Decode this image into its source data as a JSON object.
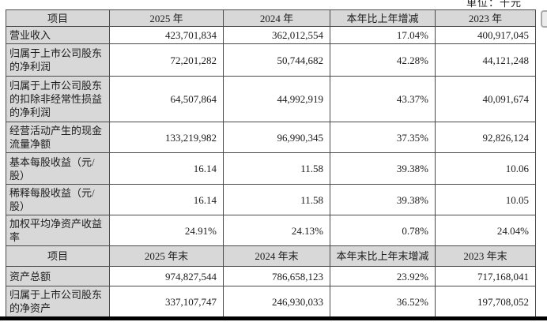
{
  "unit_label": "单位：千元",
  "colors": {
    "header_bg": "#d8d8d8",
    "border": "#4a4a4a",
    "bottom_bar": "#000000",
    "text": "#1c1c1c"
  },
  "table": {
    "rows": [
      {
        "type": "header",
        "cells": [
          "项目",
          "2025 年",
          "2024 年",
          "本年比上年增减",
          "2023 年"
        ]
      },
      {
        "type": "data",
        "label": "营业收入",
        "values": [
          "423,701,834",
          "362,012,554",
          "17.04%",
          "400,917,045"
        ]
      },
      {
        "type": "data",
        "label": "归属于上市公司股东的净利润",
        "values": [
          "72,201,282",
          "50,744,682",
          "42.28%",
          "44,121,248"
        ]
      },
      {
        "type": "data",
        "label": "归属于上市公司股东的扣除非经常性损益的净利润",
        "values": [
          "64,507,864",
          "44,992,919",
          "43.37%",
          "40,091,674"
        ]
      },
      {
        "type": "data",
        "label": "经营活动产生的现金流量净额",
        "values": [
          "133,219,982",
          "96,990,345",
          "37.35%",
          "92,826,124"
        ]
      },
      {
        "type": "data",
        "label": "基本每股收益（元/股）",
        "values": [
          "16.14",
          "11.58",
          "39.38%",
          "10.06"
        ]
      },
      {
        "type": "data",
        "label": "稀释每股收益（元/股）",
        "values": [
          "16.14",
          "11.58",
          "39.38%",
          "10.05"
        ]
      },
      {
        "type": "data",
        "label": "加权平均净资产收益率",
        "values": [
          "24.91%",
          "24.13%",
          "0.78%",
          "24.04%"
        ]
      },
      {
        "type": "header",
        "cells": [
          "项目",
          "2025 年末",
          "2024 年末",
          "本年末比上年末增减",
          "2023 年末"
        ]
      },
      {
        "type": "data",
        "label": "资产总额",
        "values": [
          "974,827,544",
          "786,658,123",
          "23.92%",
          "717,168,041"
        ]
      },
      {
        "type": "data",
        "label": "归属于上市公司股东的净资产",
        "values": [
          "337,107,747",
          "246,930,033",
          "36.52%",
          "197,708,052"
        ]
      }
    ]
  }
}
